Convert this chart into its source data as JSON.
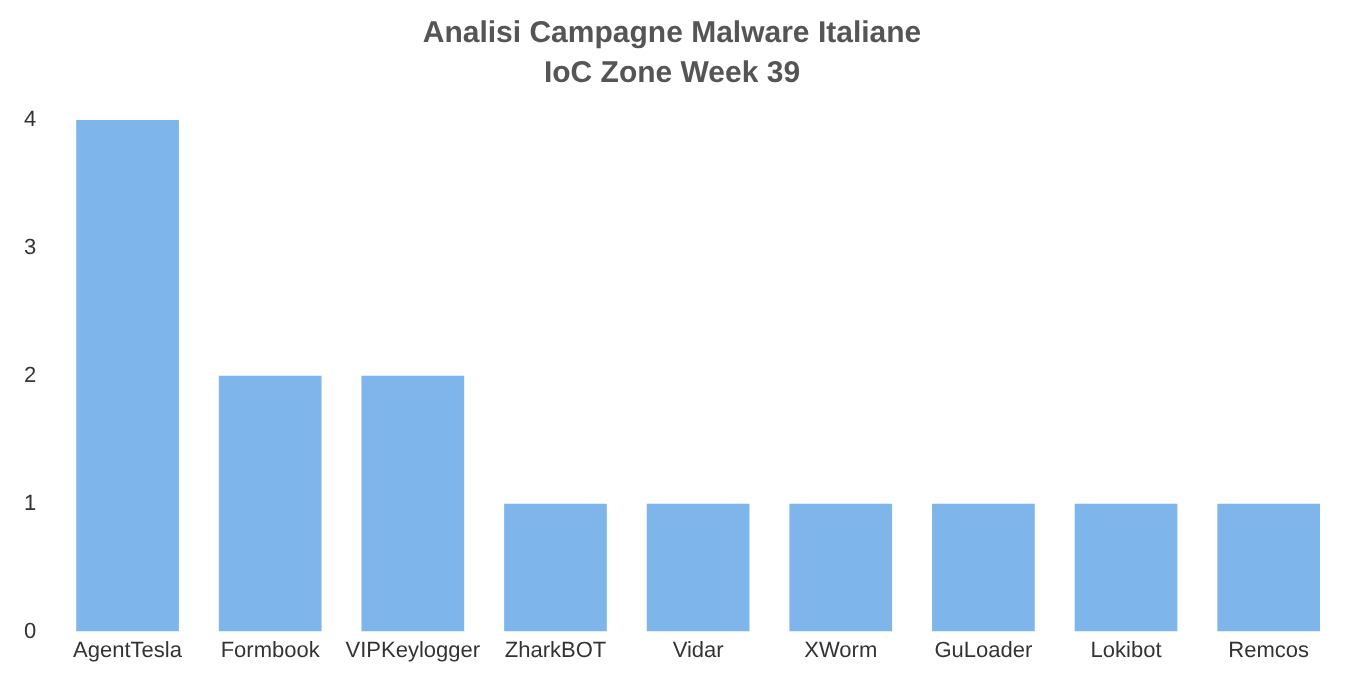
{
  "chart_data": {
    "type": "bar",
    "title": "Analisi Campagne Malware Italiane",
    "subtitle": "IoC Zone Week 39",
    "categories": [
      "AgentTesla",
      "Formbook",
      "VIPKeylogger",
      "ZharkBOT",
      "Vidar",
      "XWorm",
      "GuLoader",
      "Lokibot",
      "Remcos"
    ],
    "values": [
      4,
      2,
      2,
      1,
      1,
      1,
      1,
      1,
      1
    ],
    "color": "#7eb6ec",
    "ylim": [
      0,
      4
    ],
    "yticks": [
      0,
      1,
      2,
      3,
      4
    ],
    "grid": false,
    "legend": false
  }
}
